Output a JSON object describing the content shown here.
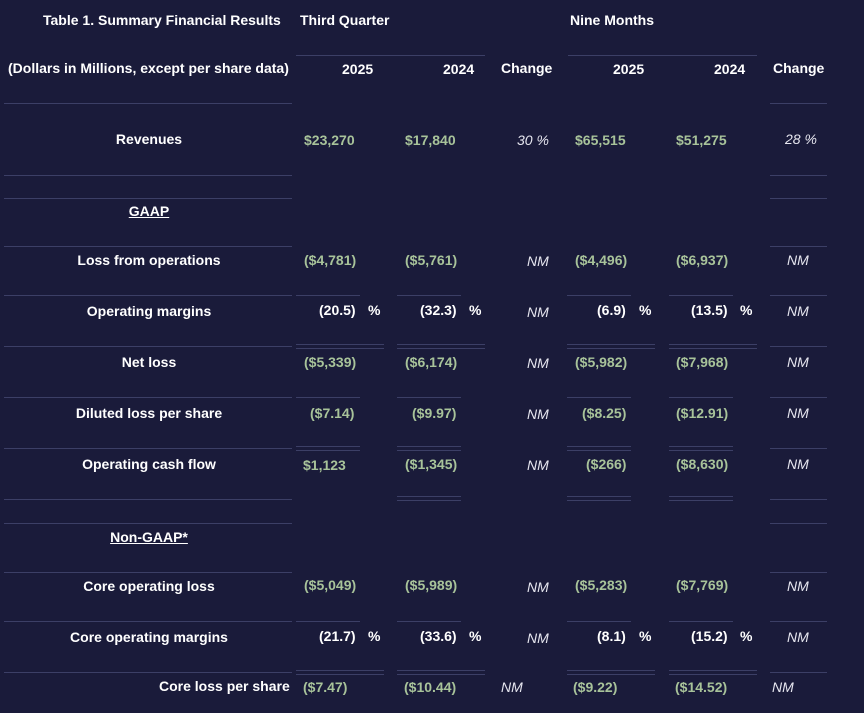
{
  "header": {
    "title": "Table 1. Summary Financial Results",
    "subtitle": "(Dollars in Millions, except per share data)",
    "group1": "Third Quarter",
    "group2": "Nine Months",
    "columns": [
      "2025",
      "2024",
      "Change",
      "2025",
      "2024",
      "Change"
    ]
  },
  "rows": [
    {
      "label": "Revenues",
      "q25": "$23,270",
      "q24": "$17,840",
      "qchg": "30 %",
      "n25": "$65,515",
      "n24": "$51,275",
      "nchg": "28 %"
    },
    {
      "label": "GAAP"
    },
    {
      "label": "Loss from operations",
      "q25": "($4,781)",
      "q24": "($5,761)",
      "qchg": "NM",
      "n25": "($4,496)",
      "n24": "($6,937)",
      "nchg": "NM"
    },
    {
      "label": "Operating margins",
      "q25": "(20.5)",
      "q24": "(32.3)",
      "qchg": "NM",
      "n25": "(6.9)",
      "n24": "(13.5)",
      "nchg": "NM",
      "pct": "%"
    },
    {
      "label": "Net loss",
      "q25": "($5,339)",
      "q24": "($6,174)",
      "qchg": "NM",
      "n25": "($5,982)",
      "n24": "($7,968)",
      "nchg": "NM"
    },
    {
      "label": "Diluted loss per share",
      "q25": "($7.14)",
      "q24": "($9.97)",
      "qchg": "NM",
      "n25": "($8.25)",
      "n24": "($12.91)",
      "nchg": "NM"
    },
    {
      "label": "Operating cash flow",
      "q25": "$1,123",
      "q24": "($1,345)",
      "qchg": "NM",
      "n25": "($266)",
      "n24": "($8,630)",
      "nchg": "NM"
    },
    {
      "label": "Non-GAAP*"
    },
    {
      "label": "Core operating loss",
      "q25": "($5,049)",
      "q24": "($5,989)",
      "qchg": "NM",
      "n25": "($5,283)",
      "n24": "($7,769)",
      "nchg": "NM"
    },
    {
      "label": "Core operating margins",
      "q25": "(21.7)",
      "q24": "(33.6)",
      "qchg": "NM",
      "n25": "(8.1)",
      "n24": "(15.2)",
      "nchg": "NM",
      "pct": "%"
    },
    {
      "label": "Core loss per share",
      "q25": "($7.47)",
      "q24": "($10.44)",
      "qchg": "NM",
      "n25": "($9.22)",
      "n24": "($14.52)",
      "nchg": "NM"
    }
  ]
}
